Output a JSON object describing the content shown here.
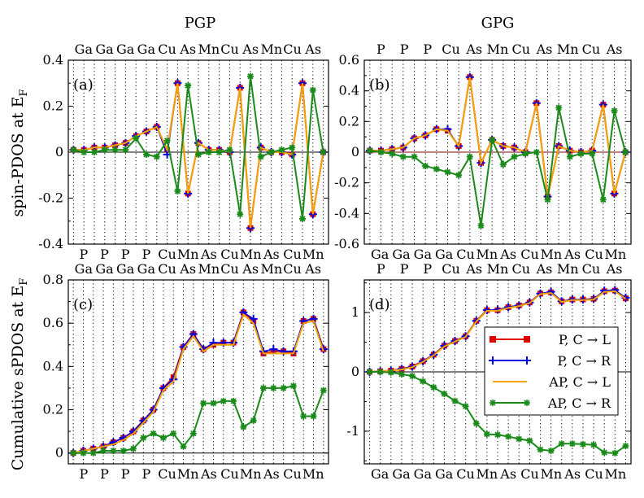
{
  "column_titles": [
    "PGP",
    "GPG"
  ],
  "y_label_top": "spin-PDOS  at  E",
  "y_label_bottom": "Cumulative sPDOS  at  E",
  "y_label_subscript": "F",
  "legend": [
    {
      "label": "P, C → L",
      "color": "#e00000",
      "marker": "square"
    },
    {
      "label": "P, C → R",
      "color": "#0000e0",
      "marker": "plus"
    },
    {
      "label": "AP, C → L",
      "color": "#f5a300",
      "marker": "none"
    },
    {
      "label": "AP, C → R",
      "color": "#1a8a1a",
      "marker": "star"
    }
  ],
  "chart_data": [
    {
      "panel": "(a)",
      "type": "line",
      "ylim": [
        -0.4,
        0.4
      ],
      "yticks": [
        -0.4,
        -0.2,
        0,
        0.2,
        0.4
      ],
      "top_labels": [
        "Ga",
        "Ga",
        "Ga",
        "Ga",
        "Cu",
        "As",
        "Mn",
        "Cu",
        "As",
        "Mn",
        "Cu",
        "As"
      ],
      "bottom_labels": [
        "P",
        "P",
        "P",
        "P",
        "Cu",
        "Mn",
        "As",
        "Cu",
        "Mn",
        "As",
        "Cu",
        "Mn"
      ],
      "series": [
        {
          "name": "P, C → L",
          "values": [
            0.01,
            0.01,
            0.02,
            0.02,
            0.03,
            0.04,
            0.07,
            0.09,
            0.11,
            0.01,
            0.3,
            -0.18,
            0.04,
            0.01,
            0.01,
            0.0,
            0.28,
            -0.33,
            0.02,
            0.0,
            0.0,
            -0.01,
            0.3,
            -0.27,
            0.0
          ]
        },
        {
          "name": "P, C → R",
          "values": [
            0.01,
            0.01,
            0.02,
            0.02,
            0.03,
            0.04,
            0.07,
            0.09,
            0.11,
            -0.01,
            0.3,
            -0.18,
            0.04,
            0.01,
            0.01,
            0.0,
            0.28,
            -0.33,
            0.02,
            0.0,
            0.0,
            -0.01,
            0.3,
            -0.27,
            0.0
          ]
        },
        {
          "name": "AP, C → L",
          "values": [
            0.01,
            0.01,
            0.02,
            0.02,
            0.03,
            0.04,
            0.07,
            0.09,
            0.11,
            0.01,
            0.3,
            -0.18,
            0.04,
            0.01,
            0.01,
            0.0,
            0.28,
            -0.33,
            0.02,
            0.0,
            0.0,
            -0.01,
            0.3,
            -0.27,
            0.0
          ]
        },
        {
          "name": "AP, C → R",
          "values": [
            0.01,
            0.0,
            0.0,
            0.01,
            0.01,
            0.01,
            0.06,
            -0.01,
            -0.02,
            0.05,
            -0.17,
            0.29,
            -0.01,
            0.0,
            0.0,
            0.01,
            -0.27,
            0.33,
            -0.02,
            0.0,
            0.01,
            0.02,
            -0.29,
            0.27,
            0.0
          ]
        }
      ]
    },
    {
      "panel": "(b)",
      "type": "line",
      "ylim": [
        -0.6,
        0.6
      ],
      "yticks": [
        -0.6,
        -0.4,
        -0.2,
        0,
        0.2,
        0.4,
        0.6
      ],
      "top_labels": [
        "P",
        "P",
        "P",
        "Cu",
        "As",
        "Mn",
        "Cu",
        "As",
        "Mn",
        "Cu",
        "As"
      ],
      "bottom_labels": [
        "Ga",
        "Ga",
        "Ga",
        "Ga",
        "Cu",
        "Mn",
        "As",
        "Cu",
        "Mn",
        "As",
        "Cu",
        "Mn"
      ],
      "series": [
        {
          "name": "P, C → L",
          "values": [
            0.01,
            0.01,
            0.02,
            0.03,
            0.09,
            0.11,
            0.15,
            0.14,
            0.04,
            0.49,
            -0.07,
            0.08,
            0.04,
            0.03,
            0.0,
            0.32,
            -0.29,
            0.04,
            0.01,
            0.0,
            0.01,
            0.31,
            -0.27,
            0.0
          ]
        },
        {
          "name": "P, C → R",
          "values": [
            0.01,
            0.01,
            0.02,
            0.03,
            0.09,
            0.11,
            0.15,
            0.15,
            0.04,
            0.49,
            -0.07,
            0.08,
            0.04,
            0.03,
            0.0,
            0.32,
            -0.29,
            0.04,
            0.01,
            0.0,
            0.01,
            0.31,
            -0.27,
            0.0
          ]
        },
        {
          "name": "AP, C → L",
          "values": [
            0.01,
            0.01,
            0.02,
            0.03,
            0.09,
            0.11,
            0.15,
            0.14,
            0.04,
            0.49,
            -0.07,
            0.08,
            0.04,
            0.03,
            0.0,
            0.32,
            -0.29,
            0.04,
            0.01,
            0.0,
            0.01,
            0.31,
            -0.27,
            0.0
          ]
        },
        {
          "name": "AP, C → R",
          "values": [
            0.01,
            0.0,
            -0.01,
            -0.03,
            -0.03,
            -0.09,
            -0.11,
            -0.13,
            -0.15,
            -0.03,
            -0.48,
            0.08,
            -0.08,
            -0.03,
            -0.01,
            0.0,
            -0.31,
            0.29,
            -0.03,
            -0.01,
            -0.01,
            -0.31,
            0.27,
            0.0
          ]
        }
      ]
    },
    {
      "panel": "(c)",
      "type": "line",
      "ylim": [
        -0.05,
        0.8
      ],
      "yticks": [
        0,
        0.2,
        0.4,
        0.6,
        0.8
      ],
      "top_labels": [
        "Ga",
        "Ga",
        "Ga",
        "Ga",
        "Cu",
        "As",
        "Mn",
        "Cu",
        "As",
        "Mn",
        "Cu",
        "As"
      ],
      "bottom_labels": [
        "P",
        "P",
        "P",
        "P",
        "Cu",
        "Mn",
        "As",
        "Cu",
        "Mn",
        "As",
        "Cu",
        "Mn"
      ],
      "series": [
        {
          "name": "P, C → L",
          "values": [
            0.0,
            0.01,
            0.02,
            0.03,
            0.05,
            0.07,
            0.1,
            0.15,
            0.2,
            0.3,
            0.35,
            0.49,
            0.55,
            0.48,
            0.5,
            0.51,
            0.51,
            0.65,
            0.61,
            0.46,
            0.47,
            0.47,
            0.46,
            0.61,
            0.62,
            0.48
          ]
        },
        {
          "name": "P, C → R",
          "values": [
            0.0,
            0.01,
            0.02,
            0.03,
            0.05,
            0.07,
            0.1,
            0.15,
            0.2,
            0.3,
            0.34,
            0.49,
            0.55,
            0.48,
            0.51,
            0.51,
            0.51,
            0.65,
            0.62,
            0.47,
            0.48,
            0.47,
            0.47,
            0.61,
            0.62,
            0.48
          ]
        },
        {
          "name": "AP, C → L",
          "values": [
            0.0,
            0.01,
            0.02,
            0.03,
            0.04,
            0.06,
            0.09,
            0.14,
            0.19,
            0.29,
            0.33,
            0.48,
            0.54,
            0.47,
            0.5,
            0.5,
            0.5,
            0.64,
            0.6,
            0.46,
            0.46,
            0.46,
            0.46,
            0.6,
            0.61,
            0.47
          ]
        },
        {
          "name": "AP, C → R",
          "values": [
            0.0,
            0.0,
            0.0,
            0.01,
            0.01,
            0.01,
            0.02,
            0.07,
            0.09,
            0.07,
            0.09,
            0.03,
            0.09,
            0.23,
            0.23,
            0.24,
            0.24,
            0.12,
            0.15,
            0.3,
            0.3,
            0.3,
            0.31,
            0.17,
            0.17,
            0.29
          ]
        }
      ]
    },
    {
      "panel": "(d)",
      "type": "line",
      "ylim": [
        -1.55,
        1.55
      ],
      "yticks": [
        -1,
        0,
        1
      ],
      "top_labels": [
        "P",
        "P",
        "P",
        "Cu",
        "As",
        "Mn",
        "Cu",
        "As",
        "Mn",
        "Cu",
        "As"
      ],
      "bottom_labels": [
        "Ga",
        "Ga",
        "Ga",
        "Ga",
        "Cu",
        "Mn",
        "As",
        "Cu",
        "Mn",
        "As",
        "Cu",
        "Mn"
      ],
      "series": [
        {
          "name": "P, C → L",
          "values": [
            0.0,
            0.01,
            0.02,
            0.05,
            0.09,
            0.18,
            0.29,
            0.44,
            0.52,
            0.6,
            0.86,
            1.04,
            1.04,
            1.09,
            1.12,
            1.17,
            1.32,
            1.34,
            1.19,
            1.22,
            1.22,
            1.23,
            1.36,
            1.37,
            1.24
          ]
        },
        {
          "name": "P, C → R",
          "values": [
            0.0,
            0.01,
            0.02,
            0.05,
            0.09,
            0.18,
            0.29,
            0.44,
            0.52,
            0.6,
            0.86,
            1.04,
            1.05,
            1.09,
            1.12,
            1.17,
            1.32,
            1.35,
            1.19,
            1.22,
            1.22,
            1.23,
            1.37,
            1.38,
            1.25
          ]
        },
        {
          "name": "AP, C → L",
          "values": [
            0.0,
            0.01,
            0.02,
            0.04,
            0.08,
            0.17,
            0.28,
            0.43,
            0.51,
            0.59,
            0.85,
            1.03,
            1.03,
            1.08,
            1.11,
            1.16,
            1.31,
            1.33,
            1.18,
            1.21,
            1.21,
            1.22,
            1.35,
            1.36,
            1.23
          ]
        },
        {
          "name": "AP, C → R",
          "values": [
            0.0,
            0.0,
            -0.01,
            -0.04,
            -0.07,
            -0.16,
            -0.26,
            -0.37,
            -0.49,
            -0.58,
            -0.87,
            -1.05,
            -1.06,
            -1.09,
            -1.13,
            -1.16,
            -1.31,
            -1.33,
            -1.21,
            -1.21,
            -1.22,
            -1.23,
            -1.36,
            -1.37,
            -1.25
          ]
        }
      ]
    }
  ]
}
